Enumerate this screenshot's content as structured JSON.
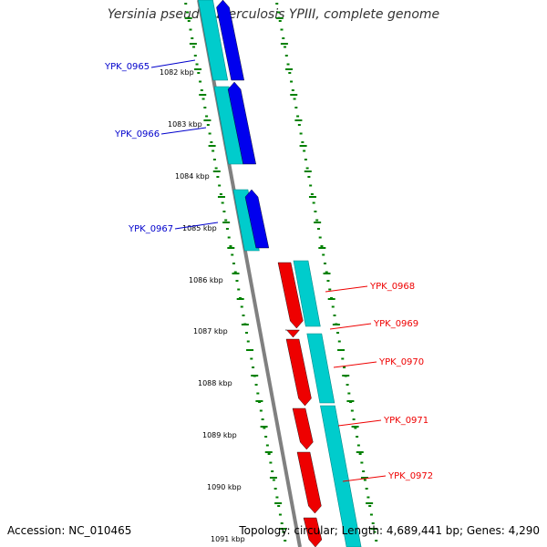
{
  "title": "Yersinia pseudotuberculosis YPIII, complete genome",
  "footer": {
    "accession": "Accession: NC_010465",
    "summary": "Topology: circular; Length: 4,689,441 bp; Genes: 4,290"
  },
  "colors": {
    "backbone": "#808080",
    "forward_gene": "#0000ee",
    "reverse_gene": "#ee0000",
    "cds": "#00cccc",
    "tick": "#008000",
    "forward_label": "#0000cc",
    "reverse_label": "#ee0000"
  },
  "ruler": [
    "1082 kbp",
    "1083 kbp",
    "1084 kbp",
    "1085 kbp",
    "1086 kbp",
    "1087 kbp",
    "1088 kbp",
    "1089 kbp",
    "1090 kbp",
    "1091 kbp"
  ],
  "genes": [
    {
      "name": "YPK_0965",
      "strand": "forward"
    },
    {
      "name": "YPK_0966",
      "strand": "forward"
    },
    {
      "name": "YPK_0967",
      "strand": "forward"
    },
    {
      "name": "YPK_0968",
      "strand": "reverse"
    },
    {
      "name": "YPK_0969",
      "strand": "reverse"
    },
    {
      "name": "YPK_0970",
      "strand": "reverse"
    },
    {
      "name": "YPK_0971",
      "strand": "reverse"
    },
    {
      "name": "YPK_0972",
      "strand": "reverse"
    }
  ]
}
